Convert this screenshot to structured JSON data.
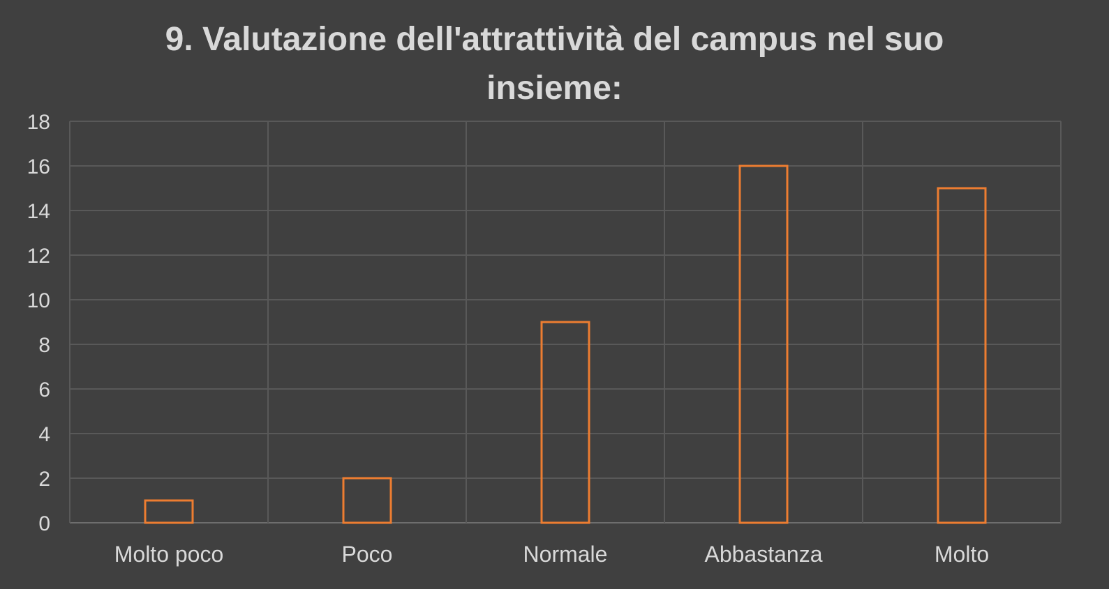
{
  "chart_data": {
    "type": "bar",
    "title_lines": [
      "9. Valutazione dell'attrattività del campus nel suo",
      "insieme:"
    ],
    "categories": [
      "Molto poco",
      "Poco",
      "Normale",
      "Abbastanza",
      "Molto"
    ],
    "values": [
      1,
      2,
      9,
      16,
      15
    ],
    "ylim": [
      0,
      18
    ],
    "yticks": [
      0,
      2,
      4,
      6,
      8,
      10,
      12,
      14,
      16,
      18
    ],
    "grid": true,
    "bar_style": "outline",
    "colors": {
      "background": "#404040",
      "bar_outline": "#ed7d31",
      "grid": "#595959",
      "text": "#d9d9d9"
    }
  }
}
